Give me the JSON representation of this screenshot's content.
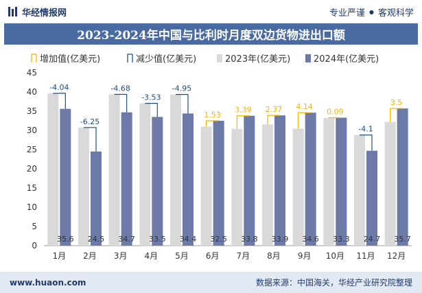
{
  "header": {
    "brand_name": "华经情报网",
    "tag_left": "专业严谨",
    "tag_separator": "●",
    "tag_right": "客观科学"
  },
  "footer": {
    "website": "www.huaon.com",
    "source": "数据来源：中国海关，华经产业研究院整理"
  },
  "colors": {
    "bar_2023": "#d9d9d9",
    "bar_2024": "#6b7aa6",
    "increase": "#f5b400",
    "decrease": "#1f4e79",
    "title_bg": "#4a6aa2"
  },
  "chart_data": {
    "type": "bar",
    "title": "2023-2024年中国与比利时月度双边货物进出口额",
    "categories": [
      "1月",
      "2月",
      "3月",
      "4月",
      "5月",
      "6月",
      "7月",
      "8月",
      "9月",
      "10月",
      "11月",
      "12月"
    ],
    "series": [
      {
        "name": "2023年(亿美元)",
        "values": [
          39.64,
          30.75,
          39.38,
          37.03,
          39.35,
          30.97,
          30.41,
          31.53,
          30.46,
          33.21,
          28.8,
          32.2
        ]
      },
      {
        "name": "2024年(亿美元)",
        "values": [
          35.6,
          24.5,
          34.7,
          33.5,
          34.4,
          32.5,
          33.8,
          33.9,
          34.6,
          33.3,
          24.7,
          35.7
        ]
      }
    ],
    "change": [
      -4.04,
      -6.25,
      -4.68,
      -3.53,
      -4.95,
      1.53,
      3.39,
      2.37,
      4.14,
      0.09,
      -4.1,
      3.5
    ],
    "change_labels": [
      "-4.04",
      "-6.25",
      "-4.68",
      "-3.53",
      "-4.95",
      "1.53",
      "3.39",
      "2.37",
      "4.14",
      "0.09",
      "-4.1",
      "3.5"
    ],
    "value_labels_2024": [
      "35.6",
      "24.5",
      "34.7",
      "33.5",
      "34.4",
      "32.5",
      "33.8",
      "33.9",
      "34.6",
      "33.3",
      "24.7",
      "35.7"
    ],
    "legend": [
      "增加值(亿美元)",
      "减少值(亿美元)",
      "2023年(亿美元)",
      "2024年(亿美元)"
    ],
    "legend_position": "top",
    "ylim": [
      0,
      45
    ],
    "yticks": [
      "0",
      "5",
      "10",
      "15",
      "20",
      "25",
      "30",
      "35",
      "40",
      "45"
    ],
    "grid": false
  }
}
